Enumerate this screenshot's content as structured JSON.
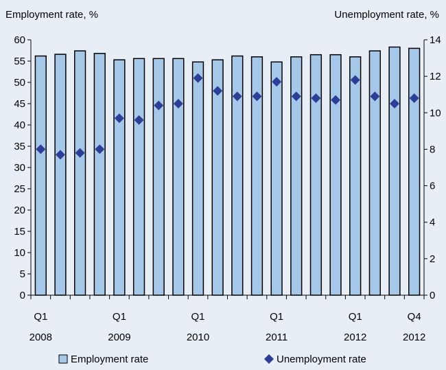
{
  "chart_data": {
    "type": "bar",
    "left_axis_title": "Employment rate, %",
    "right_axis_title": "Unemployment rate, %",
    "left_ylim": [
      0,
      60
    ],
    "left_ticks": [
      0,
      5,
      10,
      15,
      20,
      25,
      30,
      35,
      40,
      45,
      50,
      55,
      60
    ],
    "right_ylim": [
      0,
      14
    ],
    "right_ticks": [
      0,
      2,
      4,
      6,
      8,
      10,
      12,
      14
    ],
    "grid": false,
    "legend_position": "bottom",
    "colors": {
      "bar_fill": "#a6c8e8",
      "bar_stroke": "#000000",
      "marker": "#2e3d96",
      "background": "#e8eef6"
    },
    "x_tick_labels": [
      {
        "index": 0,
        "line1": "Q1",
        "line2": "2008"
      },
      {
        "index": 4,
        "line1": "Q1",
        "line2": "2009"
      },
      {
        "index": 8,
        "line1": "Q1",
        "line2": "2010"
      },
      {
        "index": 12,
        "line1": "Q1",
        "line2": "2011"
      },
      {
        "index": 16,
        "line1": "Q1",
        "line2": "2012"
      },
      {
        "index": 19,
        "line1": "Q4",
        "line2": "2012"
      }
    ],
    "categories": [
      "2008 Q1",
      "2008 Q2",
      "2008 Q3",
      "2008 Q4",
      "2009 Q1",
      "2009 Q2",
      "2009 Q3",
      "2009 Q4",
      "2010 Q1",
      "2010 Q2",
      "2010 Q3",
      "2010 Q4",
      "2011 Q1",
      "2011 Q2",
      "2011 Q3",
      "2011 Q4",
      "2012 Q1",
      "2012 Q2",
      "2012 Q3",
      "2012 Q4"
    ],
    "series": [
      {
        "name": "Employment rate",
        "type": "bar",
        "axis": "left",
        "values": [
          56.2,
          56.6,
          57.4,
          56.8,
          55.3,
          55.6,
          55.6,
          55.6,
          54.8,
          55.3,
          56.2,
          56.0,
          54.8,
          56.0,
          56.5,
          56.5,
          56.0,
          57.4,
          58.3,
          58.0
        ]
      },
      {
        "name": "Unemployment rate",
        "type": "scatter",
        "marker": "diamond",
        "axis": "right",
        "values": [
          8.0,
          7.7,
          7.8,
          8.0,
          9.7,
          9.6,
          10.4,
          10.5,
          11.9,
          11.2,
          10.9,
          10.9,
          11.7,
          10.9,
          10.8,
          10.7,
          11.8,
          10.9,
          10.5,
          10.8
        ]
      }
    ]
  }
}
